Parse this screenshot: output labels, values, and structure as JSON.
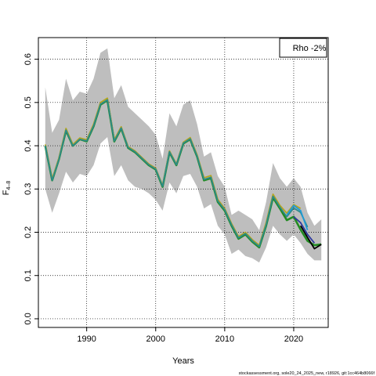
{
  "chart_data": {
    "type": "line",
    "xlabel": "Years",
    "ylabel_main": "F",
    "ylabel_sub": "4–8",
    "xlim": [
      1983,
      2025
    ],
    "ylim": [
      -0.02,
      0.65
    ],
    "x_ticks": [
      1990,
      2000,
      2010,
      2020
    ],
    "y_ticks": [
      0.0,
      0.1,
      0.2,
      0.3,
      0.4,
      0.5,
      0.6
    ],
    "y_tick_labels": [
      "0.0",
      "0.1",
      "0.2",
      "0.3",
      "0.4",
      "0.5",
      "0.6"
    ],
    "grid": "dotted",
    "legend": {
      "position": "top-right",
      "text": "Rho -2%"
    },
    "footer": "stockassessment.org, sole20_24_2025_new, r18926, git:1cc464b8066f",
    "band": {
      "color": "#bebebe",
      "x": [
        1984,
        1985,
        1986,
        1987,
        1988,
        1989,
        1990,
        1991,
        1992,
        1993,
        1994,
        1995,
        1996,
        1997,
        1998,
        1999,
        2000,
        2001,
        2002,
        2003,
        2004,
        2005,
        2006,
        2007,
        2008,
        2009,
        2010,
        2011,
        2012,
        2013,
        2014,
        2015,
        2016,
        2017,
        2018,
        2019,
        2020,
        2021,
        2022,
        2023,
        2024
      ],
      "upper": [
        0.535,
        0.43,
        0.46,
        0.555,
        0.505,
        0.525,
        0.52,
        0.555,
        0.615,
        0.625,
        0.51,
        0.54,
        0.49,
        0.475,
        0.46,
        0.445,
        0.425,
        0.37,
        0.475,
        0.445,
        0.495,
        0.505,
        0.45,
        0.375,
        0.385,
        0.33,
        0.305,
        0.24,
        0.25,
        0.24,
        0.23,
        0.205,
        0.27,
        0.36,
        0.325,
        0.305,
        0.325,
        0.305,
        0.245,
        0.215,
        0.23
      ],
      "lower": [
        0.3,
        0.245,
        0.29,
        0.34,
        0.315,
        0.335,
        0.33,
        0.355,
        0.405,
        0.42,
        0.33,
        0.355,
        0.32,
        0.305,
        0.3,
        0.29,
        0.275,
        0.25,
        0.315,
        0.29,
        0.33,
        0.335,
        0.305,
        0.255,
        0.265,
        0.215,
        0.195,
        0.15,
        0.16,
        0.145,
        0.14,
        0.13,
        0.165,
        0.215,
        0.195,
        0.18,
        0.195,
        0.175,
        0.15,
        0.135,
        0.135
      ]
    },
    "series": [
      {
        "color": "#228b22",
        "x": [
          1984,
          1985,
          1986,
          1987,
          1988,
          1989,
          1990,
          1991,
          1992,
          1993,
          1994,
          1995,
          1996,
          1997,
          1998,
          1999,
          2000,
          2001,
          2002,
          2003,
          2004,
          2005,
          2006,
          2007,
          2008,
          2009,
          2010,
          2011,
          2012,
          2013,
          2014,
          2015,
          2016,
          2017,
          2018,
          2019,
          2020,
          2021,
          2022,
          2023,
          2024
        ],
        "y": [
          0.4,
          0.32,
          0.37,
          0.435,
          0.4,
          0.415,
          0.41,
          0.445,
          0.495,
          0.505,
          0.41,
          0.44,
          0.395,
          0.385,
          0.37,
          0.355,
          0.345,
          0.305,
          0.385,
          0.355,
          0.405,
          0.415,
          0.375,
          0.32,
          0.325,
          0.27,
          0.25,
          0.215,
          0.185,
          0.195,
          0.178,
          0.165,
          0.215,
          0.28,
          0.255,
          0.228,
          0.236,
          0.206,
          0.18,
          0.17,
          0.172
        ]
      },
      {
        "color": "#b5a621",
        "x": [
          1984,
          1985,
          1986,
          1987,
          1988,
          1989,
          1990,
          1991,
          1992,
          1993,
          1994,
          1995,
          1996,
          1997,
          1998,
          1999,
          2000,
          2001,
          2002,
          2003,
          2004,
          2005,
          2006,
          2007,
          2008,
          2009,
          2010,
          2011,
          2012,
          2013,
          2014,
          2015,
          2016,
          2017,
          2018,
          2019,
          2020,
          2021
        ],
        "y": [
          0.403,
          0.323,
          0.373,
          0.44,
          0.403,
          0.418,
          0.414,
          0.45,
          0.5,
          0.51,
          0.414,
          0.444,
          0.398,
          0.388,
          0.373,
          0.358,
          0.348,
          0.308,
          0.388,
          0.358,
          0.408,
          0.419,
          0.379,
          0.326,
          0.331,
          0.276,
          0.255,
          0.22,
          0.19,
          0.2,
          0.183,
          0.17,
          0.222,
          0.288,
          0.262,
          0.244,
          0.264,
          0.255
        ]
      },
      {
        "color": "#2b8a8a",
        "x": [
          1984,
          1985,
          1986,
          1987,
          1988,
          1989,
          1990,
          1991,
          1992,
          1993,
          1994,
          1995,
          1996,
          1997,
          1998,
          1999,
          2000,
          2001,
          2002,
          2003,
          2004,
          2005,
          2006,
          2007,
          2008,
          2009,
          2010,
          2011,
          2012,
          2013,
          2014,
          2015,
          2016,
          2017,
          2018,
          2019,
          2020,
          2021,
          2022
        ],
        "y": [
          0.4,
          0.32,
          0.37,
          0.436,
          0.4,
          0.415,
          0.411,
          0.446,
          0.496,
          0.506,
          0.411,
          0.441,
          0.396,
          0.386,
          0.371,
          0.356,
          0.346,
          0.306,
          0.386,
          0.356,
          0.406,
          0.416,
          0.376,
          0.322,
          0.327,
          0.272,
          0.252,
          0.217,
          0.187,
          0.197,
          0.18,
          0.167,
          0.217,
          0.283,
          0.258,
          0.236,
          0.256,
          0.246,
          0.212
        ]
      },
      {
        "color": "#1f9bd7",
        "x": [
          2019,
          2020,
          2021,
          2022
        ],
        "y": [
          0.24,
          0.262,
          0.25,
          0.205
        ]
      },
      {
        "color": "#2e3a9e",
        "x": [
          2020,
          2021,
          2022,
          2023
        ],
        "y": [
          0.236,
          0.222,
          0.195,
          0.175
        ]
      },
      {
        "color": "#000000",
        "x": [
          2021,
          2022,
          2023,
          2024
        ],
        "y": [
          0.215,
          0.188,
          0.162,
          0.172
        ]
      }
    ]
  }
}
